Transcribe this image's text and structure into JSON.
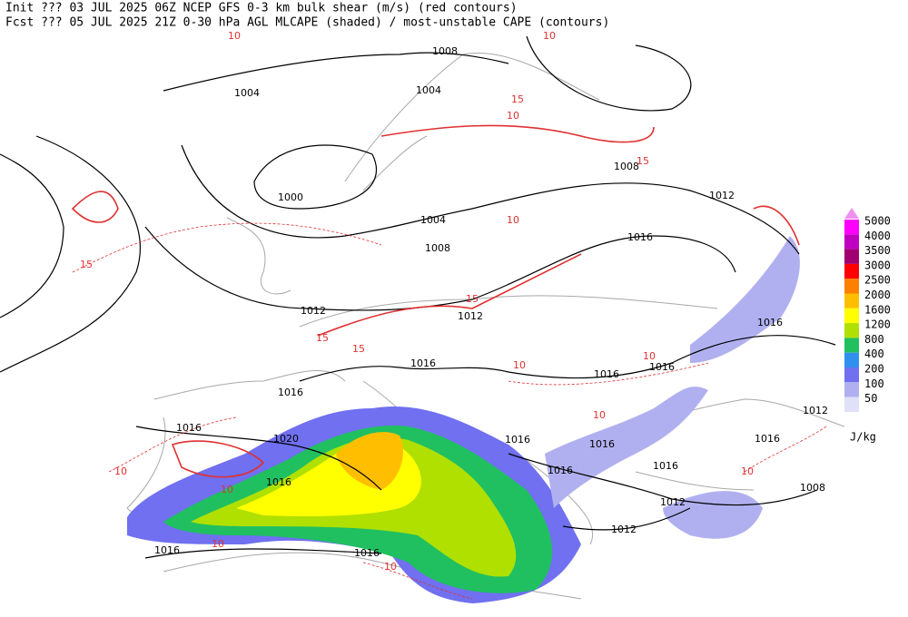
{
  "header": {
    "lines": [
      "Init  ??? 03 JUL 2025 06Z  NCEP GFS 0-3 km bulk shear (m/s) (red contours)",
      "Fcst ??? 05 JUL 2025 21Z  0-30 hPa AGL MLCAPE (shaded) / most-unstable CAPE (contours)"
    ]
  },
  "legend": {
    "items": [
      {
        "label": "5000",
        "color": "#ff00ff"
      },
      {
        "label": "4000",
        "color": "#c000c0"
      },
      {
        "label": "3500",
        "color": "#a00070"
      },
      {
        "label": "3000",
        "color": "#ff0000"
      },
      {
        "label": "2500",
        "color": "#ff7f00"
      },
      {
        "label": "2000",
        "color": "#ffbf00"
      },
      {
        "label": "1600",
        "color": "#ffff00"
      },
      {
        "label": "1200",
        "color": "#b0e000"
      },
      {
        "label": "800",
        "color": "#20c060"
      },
      {
        "label": "400",
        "color": "#3090f0"
      },
      {
        "label": "200",
        "color": "#7070f0"
      },
      {
        "label": "100",
        "color": "#b0b0f0"
      },
      {
        "label": "50",
        "color": "#e0e0f8"
      }
    ],
    "unit": "J/kg"
  },
  "isobar_labels": [
    "1008",
    "1004",
    "1004",
    "1000",
    "1004",
    "1008",
    "1008",
    "1012",
    "1016",
    "1012",
    "1012",
    "1016",
    "1016",
    "1016",
    "1020",
    "1016",
    "1016",
    "1016",
    "1016",
    "1016",
    "1016",
    "1016",
    "1012",
    "1016",
    "1016",
    "1012",
    "1012",
    "1008",
    "1016",
    "1016"
  ],
  "shear_labels": [
    "10",
    "15",
    "15",
    "10",
    "15",
    "15",
    "15",
    "15",
    "10",
    "10",
    "10",
    "10",
    "10",
    "10",
    "10",
    "10",
    "10",
    "10"
  ]
}
